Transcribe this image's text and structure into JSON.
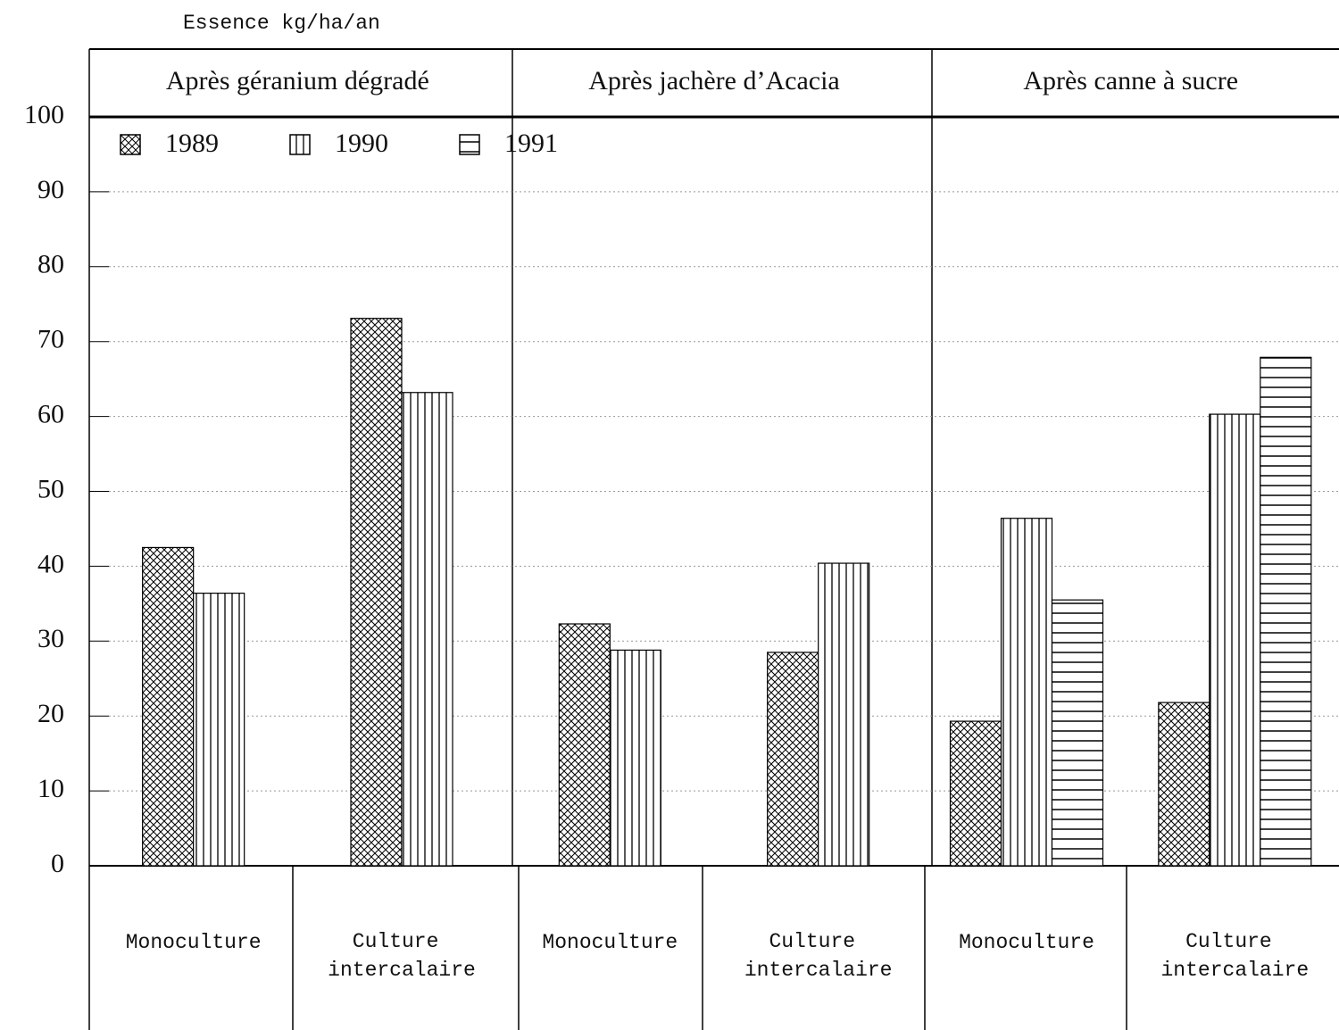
{
  "chart_data": {
    "type": "bar",
    "y_label": "Essence kg/ha/an",
    "panels": [
      "Après géranium dégradé",
      "Après jachère d’Acacia",
      "Après canne à sucre"
    ],
    "categories": [
      "Monoculture",
      "Culture intercalaire",
      "Monoculture",
      "Culture intercalaire",
      "Monoculture",
      "Culture intercalaire"
    ],
    "series": [
      {
        "name": "1989",
        "color": "#000000",
        "pattern": "crosshatch",
        "values": [
          42.5,
          73.1,
          32.3,
          28.5,
          19.3,
          21.8
        ]
      },
      {
        "name": "1990",
        "color": "#000000",
        "pattern": "vertical",
        "values": [
          36.4,
          63.2,
          28.8,
          40.4,
          46.4,
          60.3
        ]
      },
      {
        "name": "1991",
        "color": "#000000",
        "pattern": "horizontal",
        "values": [
          null,
          null,
          null,
          null,
          35.5,
          67.9
        ]
      }
    ],
    "ylim": [
      0,
      100
    ],
    "yticks": [
      0,
      10,
      20,
      30,
      40,
      50,
      60,
      70,
      80,
      90,
      100
    ],
    "grid": true
  }
}
